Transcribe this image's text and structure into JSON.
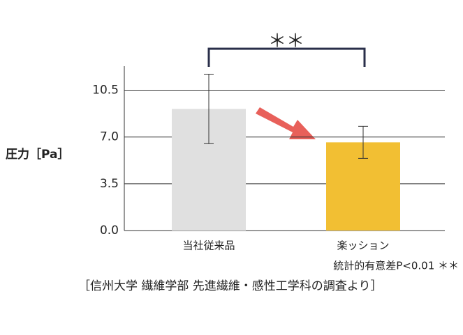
{
  "chart_data": {
    "type": "bar",
    "y_label": "圧力［Pa］",
    "categories": [
      "当社従来品",
      "楽ッション"
    ],
    "values": [
      9.1,
      6.6
    ],
    "errors": [
      2.6,
      1.2
    ],
    "colors": [
      "#e0e0e0",
      "#f2bf33"
    ],
    "ylim": [
      0,
      12.3
    ],
    "yticks": [
      {
        "value": 0,
        "label": "0.0"
      },
      {
        "value": 3.5,
        "label": "3.5"
      },
      {
        "value": 7,
        "label": "7.0"
      },
      {
        "value": 10.5,
        "label": "10.5"
      }
    ],
    "grid": true,
    "significance": "＊＊",
    "note": "統計的有意差P<0.01 ＊＊",
    "source": "［信州大学 繊維学部 先進繊維・感性工学科の調査より］"
  }
}
